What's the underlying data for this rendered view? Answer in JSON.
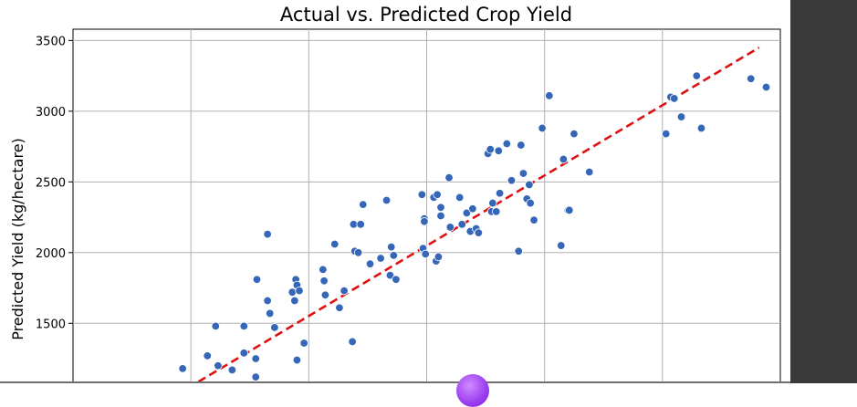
{
  "chart_data": {
    "type": "scatter",
    "title": "Actual vs. Predicted Crop Yield",
    "xlabel": "",
    "ylabel": "Predicted Yield (kg/hectare)",
    "xlim": [
      750,
      3750
    ],
    "ylim": [
      1050,
      3580
    ],
    "yticks": [
      1500,
      2000,
      2500,
      3000,
      3500
    ],
    "x_grid": [
      750,
      1250,
      1750,
      2250,
      2750,
      3250,
      3750
    ],
    "grid": true,
    "point_color": "#3566b8",
    "line_color": "#dd1111",
    "reference_line": {
      "style": "dashed",
      "x": [
        1235,
        3660
      ],
      "y": [
        1040,
        3450
      ]
    },
    "points": [
      {
        "x": 1215,
        "y": 1180
      },
      {
        "x": 1320,
        "y": 1270
      },
      {
        "x": 1365,
        "y": 1200
      },
      {
        "x": 1355,
        "y": 1480
      },
      {
        "x": 1425,
        "y": 1170
      },
      {
        "x": 1475,
        "y": 1480
      },
      {
        "x": 1475,
        "y": 1290
      },
      {
        "x": 1525,
        "y": 1250
      },
      {
        "x": 1525,
        "y": 1120
      },
      {
        "x": 1530,
        "y": 1810
      },
      {
        "x": 1575,
        "y": 1660
      },
      {
        "x": 1585,
        "y": 1570
      },
      {
        "x": 1605,
        "y": 1470
      },
      {
        "x": 1575,
        "y": 2130
      },
      {
        "x": 1680,
        "y": 1720
      },
      {
        "x": 1695,
        "y": 1810
      },
      {
        "x": 1700,
        "y": 1770
      },
      {
        "x": 1710,
        "y": 1730
      },
      {
        "x": 1690,
        "y": 1660
      },
      {
        "x": 1700,
        "y": 1240
      },
      {
        "x": 1730,
        "y": 1360
      },
      {
        "x": 1810,
        "y": 1880
      },
      {
        "x": 1820,
        "y": 1700
      },
      {
        "x": 1815,
        "y": 1800
      },
      {
        "x": 1860,
        "y": 2060
      },
      {
        "x": 1880,
        "y": 1610
      },
      {
        "x": 1900,
        "y": 1730
      },
      {
        "x": 1935,
        "y": 1370
      },
      {
        "x": 1945,
        "y": 2010
      },
      {
        "x": 1960,
        "y": 2000
      },
      {
        "x": 1940,
        "y": 2200
      },
      {
        "x": 1970,
        "y": 2200
      },
      {
        "x": 1980,
        "y": 2340
      },
      {
        "x": 2010,
        "y": 1920
      },
      {
        "x": 2055,
        "y": 1960
      },
      {
        "x": 2080,
        "y": 2370
      },
      {
        "x": 2095,
        "y": 1840
      },
      {
        "x": 2100,
        "y": 2040
      },
      {
        "x": 2110,
        "y": 1980
      },
      {
        "x": 2120,
        "y": 1810
      },
      {
        "x": 2230,
        "y": 2410
      },
      {
        "x": 2240,
        "y": 2240
      },
      {
        "x": 2240,
        "y": 2220
      },
      {
        "x": 2235,
        "y": 2030
      },
      {
        "x": 2245,
        "y": 1990
      },
      {
        "x": 2280,
        "y": 2390
      },
      {
        "x": 2295,
        "y": 2410
      },
      {
        "x": 2290,
        "y": 1940
      },
      {
        "x": 2300,
        "y": 1970
      },
      {
        "x": 2310,
        "y": 2320
      },
      {
        "x": 2310,
        "y": 2260
      },
      {
        "x": 2345,
        "y": 2530
      },
      {
        "x": 2350,
        "y": 2180
      },
      {
        "x": 2390,
        "y": 2390
      },
      {
        "x": 2400,
        "y": 2200
      },
      {
        "x": 2420,
        "y": 2280
      },
      {
        "x": 2435,
        "y": 2150
      },
      {
        "x": 2445,
        "y": 2310
      },
      {
        "x": 2460,
        "y": 2170
      },
      {
        "x": 2470,
        "y": 2140
      },
      {
        "x": 2510,
        "y": 2700
      },
      {
        "x": 2520,
        "y": 2730
      },
      {
        "x": 2525,
        "y": 2290
      },
      {
        "x": 2530,
        "y": 2350
      },
      {
        "x": 2545,
        "y": 2290
      },
      {
        "x": 2555,
        "y": 2720
      },
      {
        "x": 2560,
        "y": 2420
      },
      {
        "x": 2590,
        "y": 2770
      },
      {
        "x": 2610,
        "y": 2510
      },
      {
        "x": 2640,
        "y": 2010
      },
      {
        "x": 2650,
        "y": 2760
      },
      {
        "x": 2660,
        "y": 2560
      },
      {
        "x": 2675,
        "y": 2380
      },
      {
        "x": 2685,
        "y": 2480
      },
      {
        "x": 2690,
        "y": 2350
      },
      {
        "x": 2705,
        "y": 2230
      },
      {
        "x": 2740,
        "y": 2880
      },
      {
        "x": 2770,
        "y": 3110
      },
      {
        "x": 2820,
        "y": 2050
      },
      {
        "x": 2830,
        "y": 2660
      },
      {
        "x": 2850,
        "y": 2300
      },
      {
        "x": 2855,
        "y": 2300
      },
      {
        "x": 2875,
        "y": 2840
      },
      {
        "x": 2940,
        "y": 2570
      },
      {
        "x": 3265,
        "y": 2840
      },
      {
        "x": 3285,
        "y": 3100
      },
      {
        "x": 3300,
        "y": 3090
      },
      {
        "x": 3330,
        "y": 2960
      },
      {
        "x": 3395,
        "y": 3250
      },
      {
        "x": 3415,
        "y": 2880
      },
      {
        "x": 3625,
        "y": 3230
      },
      {
        "x": 3690,
        "y": 3170
      }
    ]
  }
}
